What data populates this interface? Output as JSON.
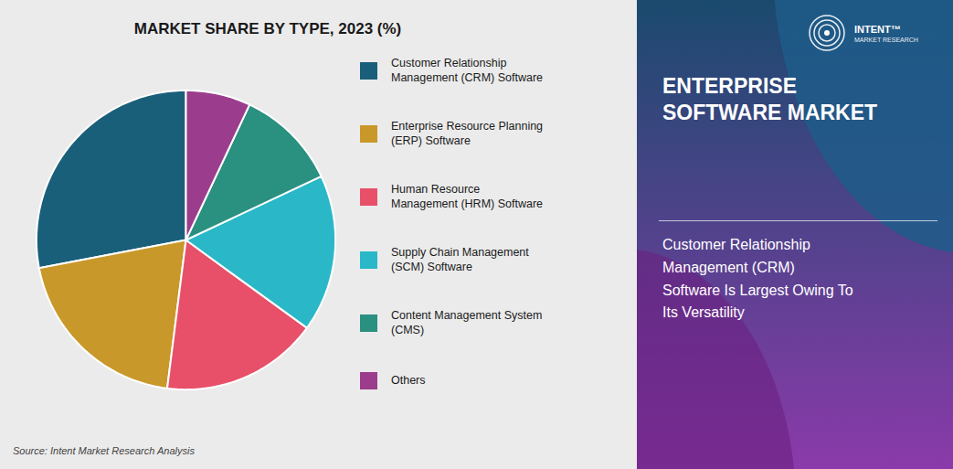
{
  "chart_data": {
    "type": "pie",
    "title": "MARKET SHARE BY TYPE, 2023 (%)",
    "categories": [
      "Customer Relationship\nManagement (CRM) Software",
      "Enterprise Resource Planning\n(ERP) Software",
      "Human Resource\nManagement (HRM) Software",
      "Supply Chain Management\n(SCM) Software",
      "Content Management System\n(CMS)",
      "Others"
    ],
    "values": [
      28,
      20,
      17,
      17,
      11,
      7
    ],
    "colors": [
      "#1a5f7a",
      "#c9982a",
      "#e8506a",
      "#2ab8c8",
      "#2a9080",
      "#9b3d8c"
    ],
    "legend": "right",
    "annotations": [
      "Source: Intent Market Research Analysis",
      "ENTERPRISE\nSOFTWARE MARKET",
      "Customer Relationship\nManagement (CRM)\nSoftware Is Largest Owing To\nIts Versatility",
      "INTENT™",
      "MARKET RESEARCH"
    ]
  }
}
